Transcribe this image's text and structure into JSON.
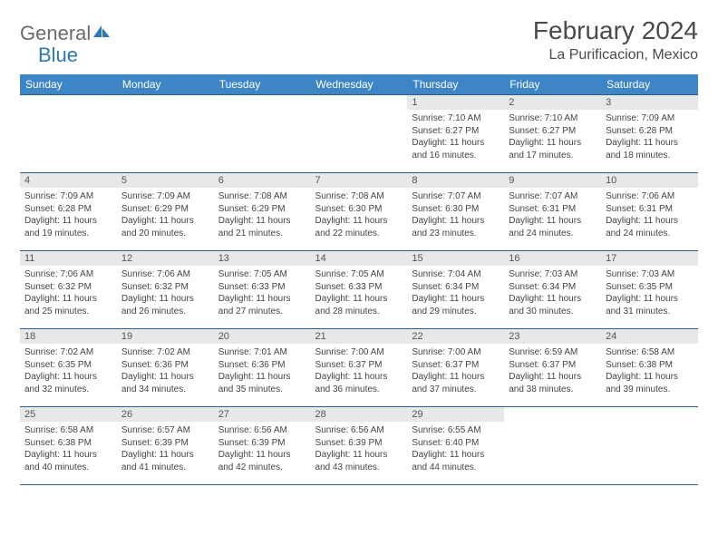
{
  "brand": {
    "part1": "General",
    "part2": "Blue"
  },
  "title": "February 2024",
  "location": "La Purificacion, Mexico",
  "header_bg": "#3e85c6",
  "header_fg": "#ffffff",
  "divider_color": "#2e5f8a",
  "daynum_bg": "#e8e8e8",
  "text_color": "#444444",
  "days": [
    "Sunday",
    "Monday",
    "Tuesday",
    "Wednesday",
    "Thursday",
    "Friday",
    "Saturday"
  ],
  "weeks": [
    [
      null,
      null,
      null,
      null,
      {
        "n": "1",
        "sr": "Sunrise: 7:10 AM",
        "ss": "Sunset: 6:27 PM",
        "dl": "Daylight: 11 hours and 16 minutes."
      },
      {
        "n": "2",
        "sr": "Sunrise: 7:10 AM",
        "ss": "Sunset: 6:27 PM",
        "dl": "Daylight: 11 hours and 17 minutes."
      },
      {
        "n": "3",
        "sr": "Sunrise: 7:09 AM",
        "ss": "Sunset: 6:28 PM",
        "dl": "Daylight: 11 hours and 18 minutes."
      }
    ],
    [
      {
        "n": "4",
        "sr": "Sunrise: 7:09 AM",
        "ss": "Sunset: 6:28 PM",
        "dl": "Daylight: 11 hours and 19 minutes."
      },
      {
        "n": "5",
        "sr": "Sunrise: 7:09 AM",
        "ss": "Sunset: 6:29 PM",
        "dl": "Daylight: 11 hours and 20 minutes."
      },
      {
        "n": "6",
        "sr": "Sunrise: 7:08 AM",
        "ss": "Sunset: 6:29 PM",
        "dl": "Daylight: 11 hours and 21 minutes."
      },
      {
        "n": "7",
        "sr": "Sunrise: 7:08 AM",
        "ss": "Sunset: 6:30 PM",
        "dl": "Daylight: 11 hours and 22 minutes."
      },
      {
        "n": "8",
        "sr": "Sunrise: 7:07 AM",
        "ss": "Sunset: 6:30 PM",
        "dl": "Daylight: 11 hours and 23 minutes."
      },
      {
        "n": "9",
        "sr": "Sunrise: 7:07 AM",
        "ss": "Sunset: 6:31 PM",
        "dl": "Daylight: 11 hours and 24 minutes."
      },
      {
        "n": "10",
        "sr": "Sunrise: 7:06 AM",
        "ss": "Sunset: 6:31 PM",
        "dl": "Daylight: 11 hours and 24 minutes."
      }
    ],
    [
      {
        "n": "11",
        "sr": "Sunrise: 7:06 AM",
        "ss": "Sunset: 6:32 PM",
        "dl": "Daylight: 11 hours and 25 minutes."
      },
      {
        "n": "12",
        "sr": "Sunrise: 7:06 AM",
        "ss": "Sunset: 6:32 PM",
        "dl": "Daylight: 11 hours and 26 minutes."
      },
      {
        "n": "13",
        "sr": "Sunrise: 7:05 AM",
        "ss": "Sunset: 6:33 PM",
        "dl": "Daylight: 11 hours and 27 minutes."
      },
      {
        "n": "14",
        "sr": "Sunrise: 7:05 AM",
        "ss": "Sunset: 6:33 PM",
        "dl": "Daylight: 11 hours and 28 minutes."
      },
      {
        "n": "15",
        "sr": "Sunrise: 7:04 AM",
        "ss": "Sunset: 6:34 PM",
        "dl": "Daylight: 11 hours and 29 minutes."
      },
      {
        "n": "16",
        "sr": "Sunrise: 7:03 AM",
        "ss": "Sunset: 6:34 PM",
        "dl": "Daylight: 11 hours and 30 minutes."
      },
      {
        "n": "17",
        "sr": "Sunrise: 7:03 AM",
        "ss": "Sunset: 6:35 PM",
        "dl": "Daylight: 11 hours and 31 minutes."
      }
    ],
    [
      {
        "n": "18",
        "sr": "Sunrise: 7:02 AM",
        "ss": "Sunset: 6:35 PM",
        "dl": "Daylight: 11 hours and 32 minutes."
      },
      {
        "n": "19",
        "sr": "Sunrise: 7:02 AM",
        "ss": "Sunset: 6:36 PM",
        "dl": "Daylight: 11 hours and 34 minutes."
      },
      {
        "n": "20",
        "sr": "Sunrise: 7:01 AM",
        "ss": "Sunset: 6:36 PM",
        "dl": "Daylight: 11 hours and 35 minutes."
      },
      {
        "n": "21",
        "sr": "Sunrise: 7:00 AM",
        "ss": "Sunset: 6:37 PM",
        "dl": "Daylight: 11 hours and 36 minutes."
      },
      {
        "n": "22",
        "sr": "Sunrise: 7:00 AM",
        "ss": "Sunset: 6:37 PM",
        "dl": "Daylight: 11 hours and 37 minutes."
      },
      {
        "n": "23",
        "sr": "Sunrise: 6:59 AM",
        "ss": "Sunset: 6:37 PM",
        "dl": "Daylight: 11 hours and 38 minutes."
      },
      {
        "n": "24",
        "sr": "Sunrise: 6:58 AM",
        "ss": "Sunset: 6:38 PM",
        "dl": "Daylight: 11 hours and 39 minutes."
      }
    ],
    [
      {
        "n": "25",
        "sr": "Sunrise: 6:58 AM",
        "ss": "Sunset: 6:38 PM",
        "dl": "Daylight: 11 hours and 40 minutes."
      },
      {
        "n": "26",
        "sr": "Sunrise: 6:57 AM",
        "ss": "Sunset: 6:39 PM",
        "dl": "Daylight: 11 hours and 41 minutes."
      },
      {
        "n": "27",
        "sr": "Sunrise: 6:56 AM",
        "ss": "Sunset: 6:39 PM",
        "dl": "Daylight: 11 hours and 42 minutes."
      },
      {
        "n": "28",
        "sr": "Sunrise: 6:56 AM",
        "ss": "Sunset: 6:39 PM",
        "dl": "Daylight: 11 hours and 43 minutes."
      },
      {
        "n": "29",
        "sr": "Sunrise: 6:55 AM",
        "ss": "Sunset: 6:40 PM",
        "dl": "Daylight: 11 hours and 44 minutes."
      },
      null,
      null
    ]
  ]
}
